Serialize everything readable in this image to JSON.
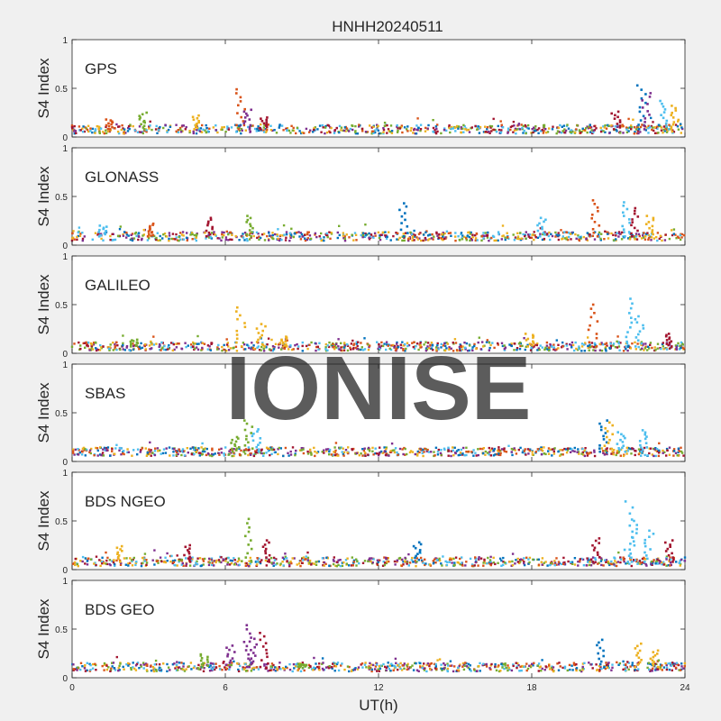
{
  "figure": {
    "title": "HNHH20240511",
    "xlabel": "UT(h)",
    "watermark": "IONISE"
  },
  "colors": [
    "#0072BD",
    "#D95319",
    "#EDB120",
    "#7E2F8E",
    "#77AC30",
    "#4DBEEE",
    "#A2142F"
  ],
  "chart_data": [
    {
      "type": "scatter",
      "panel": "GPS",
      "ylabel": "S4 Index",
      "xlim": [
        0,
        24
      ],
      "ylim": [
        0,
        1
      ],
      "xticks": [
        0,
        6,
        12,
        18,
        24
      ],
      "yticks": [
        0,
        0.5,
        1
      ],
      "base": 0.08,
      "spikes": [
        {
          "x": 1.5,
          "y": 0.18,
          "color": 1
        },
        {
          "x": 2.8,
          "y": 0.25,
          "color": 4
        },
        {
          "x": 4.8,
          "y": 0.22,
          "color": 2
        },
        {
          "x": 6.6,
          "y": 0.49,
          "color": 1
        },
        {
          "x": 6.9,
          "y": 0.28,
          "color": 3
        },
        {
          "x": 7.5,
          "y": 0.2,
          "color": 6
        },
        {
          "x": 21.3,
          "y": 0.26,
          "color": 6
        },
        {
          "x": 22.3,
          "y": 0.53,
          "color": 0
        },
        {
          "x": 22.5,
          "y": 0.45,
          "color": 3
        },
        {
          "x": 23.2,
          "y": 0.37,
          "color": 5
        },
        {
          "x": 23.6,
          "y": 0.32,
          "color": 2
        }
      ]
    },
    {
      "type": "scatter",
      "panel": "GLONASS",
      "ylabel": "S4 Index",
      "xlim": [
        0,
        24
      ],
      "ylim": [
        0,
        1
      ],
      "xticks": [
        0,
        6,
        12,
        18,
        24
      ],
      "yticks": [
        0,
        0.5,
        1
      ],
      "base": 0.09,
      "spikes": [
        {
          "x": 1.2,
          "y": 0.2,
          "color": 5
        },
        {
          "x": 3.1,
          "y": 0.22,
          "color": 1
        },
        {
          "x": 5.4,
          "y": 0.28,
          "color": 6
        },
        {
          "x": 6.9,
          "y": 0.3,
          "color": 4
        },
        {
          "x": 13.0,
          "y": 0.43,
          "color": 0
        },
        {
          "x": 18.4,
          "y": 0.28,
          "color": 5
        },
        {
          "x": 20.5,
          "y": 0.46,
          "color": 1
        },
        {
          "x": 21.7,
          "y": 0.44,
          "color": 5
        },
        {
          "x": 22.0,
          "y": 0.38,
          "color": 6
        },
        {
          "x": 22.6,
          "y": 0.3,
          "color": 2
        }
      ]
    },
    {
      "type": "scatter",
      "panel": "GALILEO",
      "ylabel": "S4 Index",
      "xlim": [
        0,
        24
      ],
      "ylim": [
        0,
        1
      ],
      "xticks": [
        0,
        6,
        12,
        18,
        24
      ],
      "yticks": [
        0,
        0.5,
        1
      ],
      "base": 0.07,
      "spikes": [
        {
          "x": 2.4,
          "y": 0.14,
          "color": 4
        },
        {
          "x": 6.6,
          "y": 0.47,
          "color": 2
        },
        {
          "x": 7.4,
          "y": 0.3,
          "color": 2
        },
        {
          "x": 8.3,
          "y": 0.17,
          "color": 2
        },
        {
          "x": 17.9,
          "y": 0.2,
          "color": 2
        },
        {
          "x": 20.4,
          "y": 0.5,
          "color": 1
        },
        {
          "x": 21.8,
          "y": 0.56,
          "color": 5
        },
        {
          "x": 22.2,
          "y": 0.38,
          "color": 5
        },
        {
          "x": 23.4,
          "y": 0.2,
          "color": 6
        }
      ]
    },
    {
      "type": "scatter",
      "panel": "SBAS",
      "ylabel": "S4 Index",
      "xlim": [
        0,
        24
      ],
      "ylim": [
        0,
        1
      ],
      "xticks": [
        0,
        6,
        12,
        18,
        24
      ],
      "yticks": [
        0,
        0.5,
        1
      ],
      "base": 0.1,
      "spikes": [
        {
          "x": 6.4,
          "y": 0.25,
          "color": 4
        },
        {
          "x": 6.9,
          "y": 0.42,
          "color": 4
        },
        {
          "x": 7.2,
          "y": 0.33,
          "color": 5
        },
        {
          "x": 20.8,
          "y": 0.42,
          "color": 0
        },
        {
          "x": 21.0,
          "y": 0.4,
          "color": 2
        },
        {
          "x": 21.5,
          "y": 0.3,
          "color": 5
        },
        {
          "x": 22.4,
          "y": 0.32,
          "color": 5
        }
      ]
    },
    {
      "type": "scatter",
      "panel": "BDS NGEO",
      "ylabel": "S4 Index",
      "xlim": [
        0,
        24
      ],
      "ylim": [
        0,
        1
      ],
      "xticks": [
        0,
        6,
        12,
        18,
        24
      ],
      "yticks": [
        0,
        0.5,
        1
      ],
      "base": 0.08,
      "spikes": [
        {
          "x": 1.8,
          "y": 0.24,
          "color": 2
        },
        {
          "x": 4.5,
          "y": 0.25,
          "color": 6
        },
        {
          "x": 6.9,
          "y": 0.52,
          "color": 4
        },
        {
          "x": 7.6,
          "y": 0.3,
          "color": 6
        },
        {
          "x": 13.5,
          "y": 0.28,
          "color": 0
        },
        {
          "x": 20.5,
          "y": 0.32,
          "color": 6
        },
        {
          "x": 21.8,
          "y": 0.7,
          "color": 5
        },
        {
          "x": 22.0,
          "y": 0.5,
          "color": 5
        },
        {
          "x": 22.6,
          "y": 0.4,
          "color": 5
        },
        {
          "x": 23.4,
          "y": 0.3,
          "color": 6
        }
      ]
    },
    {
      "type": "scatter",
      "panel": "BDS GEO",
      "ylabel": "S4 Index",
      "xlim": [
        0,
        24
      ],
      "ylim": [
        0,
        1
      ],
      "xticks": [
        0,
        6,
        12,
        18,
        24
      ],
      "yticks": [
        0,
        0.5,
        1
      ],
      "base": 0.11,
      "spikes": [
        {
          "x": 5.2,
          "y": 0.24,
          "color": 4
        },
        {
          "x": 6.2,
          "y": 0.33,
          "color": 3
        },
        {
          "x": 6.9,
          "y": 0.54,
          "color": 3
        },
        {
          "x": 7.1,
          "y": 0.4,
          "color": 3
        },
        {
          "x": 7.5,
          "y": 0.46,
          "color": 6
        },
        {
          "x": 9.0,
          "y": 0.14,
          "color": 4
        },
        {
          "x": 20.7,
          "y": 0.39,
          "color": 0
        },
        {
          "x": 22.2,
          "y": 0.35,
          "color": 2
        },
        {
          "x": 22.8,
          "y": 0.28,
          "color": 2
        }
      ]
    }
  ]
}
